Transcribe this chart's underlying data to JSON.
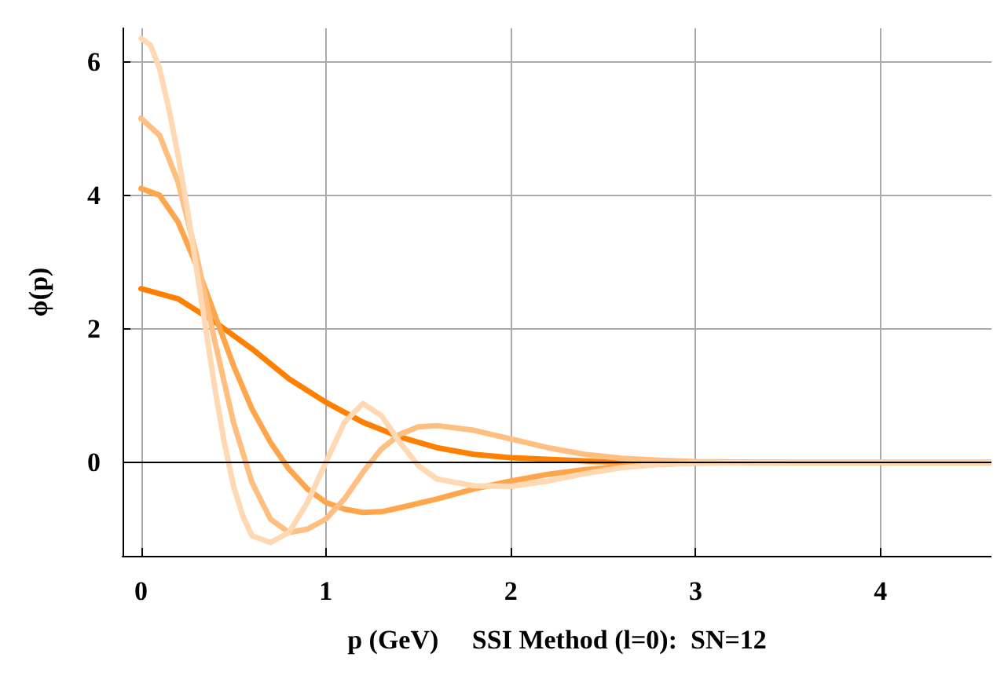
{
  "chart_data": {
    "type": "line",
    "xlabel": "p (GeV)     SSI Method (l=0):  SN=12",
    "ylabel": "ϕ(p)",
    "xlim": [
      -0.1,
      4.6
    ],
    "ylim": [
      -1.4,
      6.5
    ],
    "xticks": [
      0,
      1,
      2,
      3,
      4
    ],
    "yticks": [
      0,
      2,
      4,
      6
    ],
    "grid": true,
    "marker": "none",
    "line_style": "solid",
    "ref_lines": [
      {
        "axis": "y",
        "value": 0,
        "color": "#000000"
      }
    ],
    "series": [
      {
        "color": "#ff8000",
        "x": [
          0,
          0.2,
          0.4,
          0.6,
          0.8,
          1.0,
          1.2,
          1.4,
          1.6,
          1.8,
          2.0,
          2.5,
          3,
          4.6
        ],
        "values": [
          2.6,
          2.45,
          2.1,
          1.7,
          1.25,
          0.9,
          0.6,
          0.38,
          0.22,
          0.12,
          0.07,
          0.01,
          0,
          0
        ]
      },
      {
        "color": "#ffa64d",
        "x": [
          0,
          0.1,
          0.2,
          0.3,
          0.4,
          0.5,
          0.6,
          0.7,
          0.8,
          0.9,
          1.0,
          1.1,
          1.2,
          1.3,
          1.4,
          1.6,
          1.8,
          2.0,
          2.2,
          2.4,
          2.6,
          2.8,
          3,
          3.5,
          4.6
        ],
        "values": [
          4.1,
          4.0,
          3.6,
          2.95,
          2.2,
          1.45,
          0.8,
          0.3,
          -0.1,
          -0.4,
          -0.6,
          -0.7,
          -0.75,
          -0.74,
          -0.68,
          -0.55,
          -0.4,
          -0.28,
          -0.18,
          -0.11,
          -0.06,
          -0.03,
          -0.01,
          0,
          0
        ]
      },
      {
        "color": "#ffbf80",
        "x": [
          0,
          0.1,
          0.2,
          0.3,
          0.4,
          0.5,
          0.6,
          0.7,
          0.8,
          0.9,
          1.0,
          1.1,
          1.2,
          1.3,
          1.4,
          1.5,
          1.6,
          1.8,
          2.0,
          2.2,
          2.4,
          2.6,
          2.8,
          3,
          3.5,
          4.6
        ],
        "values": [
          5.15,
          4.9,
          4.2,
          3.1,
          1.8,
          0.6,
          -0.3,
          -0.85,
          -1.05,
          -1.0,
          -0.85,
          -0.55,
          -0.15,
          0.2,
          0.42,
          0.53,
          0.55,
          0.48,
          0.35,
          0.22,
          0.12,
          0.06,
          0.03,
          0.01,
          0,
          0
        ]
      },
      {
        "color": "#ffd9b3",
        "x": [
          0,
          0.05,
          0.1,
          0.15,
          0.2,
          0.25,
          0.3,
          0.35,
          0.4,
          0.45,
          0.5,
          0.55,
          0.6,
          0.7,
          0.8,
          0.9,
          1.0,
          1.1,
          1.2,
          1.3,
          1.4,
          1.5,
          1.6,
          1.8,
          2.0,
          2.2,
          2.4,
          2.6,
          2.8,
          3,
          3.5,
          4.6
        ],
        "values": [
          6.35,
          6.25,
          5.9,
          5.3,
          4.6,
          3.8,
          2.9,
          2.0,
          1.1,
          0.3,
          -0.35,
          -0.8,
          -1.1,
          -1.2,
          -1.05,
          -0.6,
          0.0,
          0.6,
          0.88,
          0.7,
          0.3,
          -0.05,
          -0.25,
          -0.35,
          -0.36,
          -0.28,
          -0.17,
          -0.08,
          -0.03,
          -0.01,
          0,
          0
        ]
      }
    ]
  }
}
